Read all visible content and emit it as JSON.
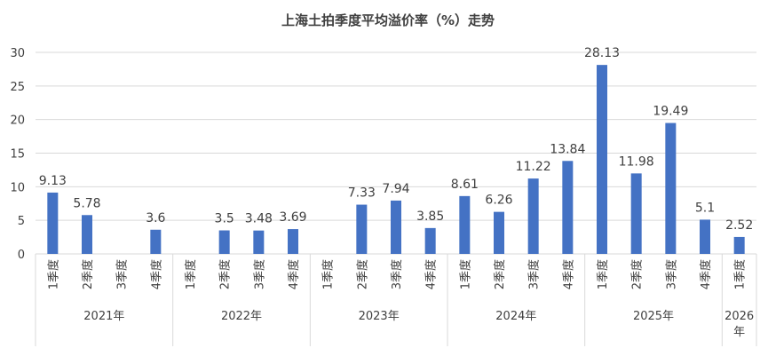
{
  "chart_data": {
    "type": "bar",
    "title": "上海土拍季度平均溢价率（%）走势",
    "xlabel": "",
    "ylabel": "",
    "ylim": [
      0,
      30
    ],
    "yticks": [
      0,
      5,
      10,
      15,
      20,
      25,
      30
    ],
    "grid": true,
    "legend": "none",
    "bar_color": "#4472c4",
    "categories": [
      "1季度",
      "2季度",
      "3季度",
      "4季度",
      "1季度",
      "2季度",
      "3季度",
      "4季度",
      "1季度",
      "2季度",
      "3季度",
      "4季度",
      "1季度",
      "2季度",
      "3季度",
      "4季度",
      "1季度",
      "2季度",
      "3季度",
      "4季度",
      "1季度"
    ],
    "groups": [
      {
        "label": "2021年",
        "count": 4
      },
      {
        "label": "2022年",
        "count": 4
      },
      {
        "label": "2023年",
        "count": 4
      },
      {
        "label": "2024年",
        "count": 4
      },
      {
        "label": "2025年",
        "count": 4
      },
      {
        "label": "2026年",
        "count": 1
      }
    ],
    "values": [
      9.13,
      5.78,
      null,
      3.6,
      null,
      3.5,
      3.48,
      3.69,
      null,
      7.33,
      7.94,
      3.85,
      8.61,
      6.26,
      11.22,
      13.84,
      28.13,
      11.98,
      19.49,
      5.1,
      2.52
    ],
    "data_labels": [
      "9.13",
      "5.78",
      "",
      "3.6",
      "",
      "3.5",
      "3.48",
      "3.69",
      "",
      "7.33",
      "7.94",
      "3.85",
      "8.61",
      "6.26",
      "11.22",
      "13.84",
      "28.13",
      "11.98",
      "19.49",
      "5.1",
      "2.52"
    ]
  }
}
